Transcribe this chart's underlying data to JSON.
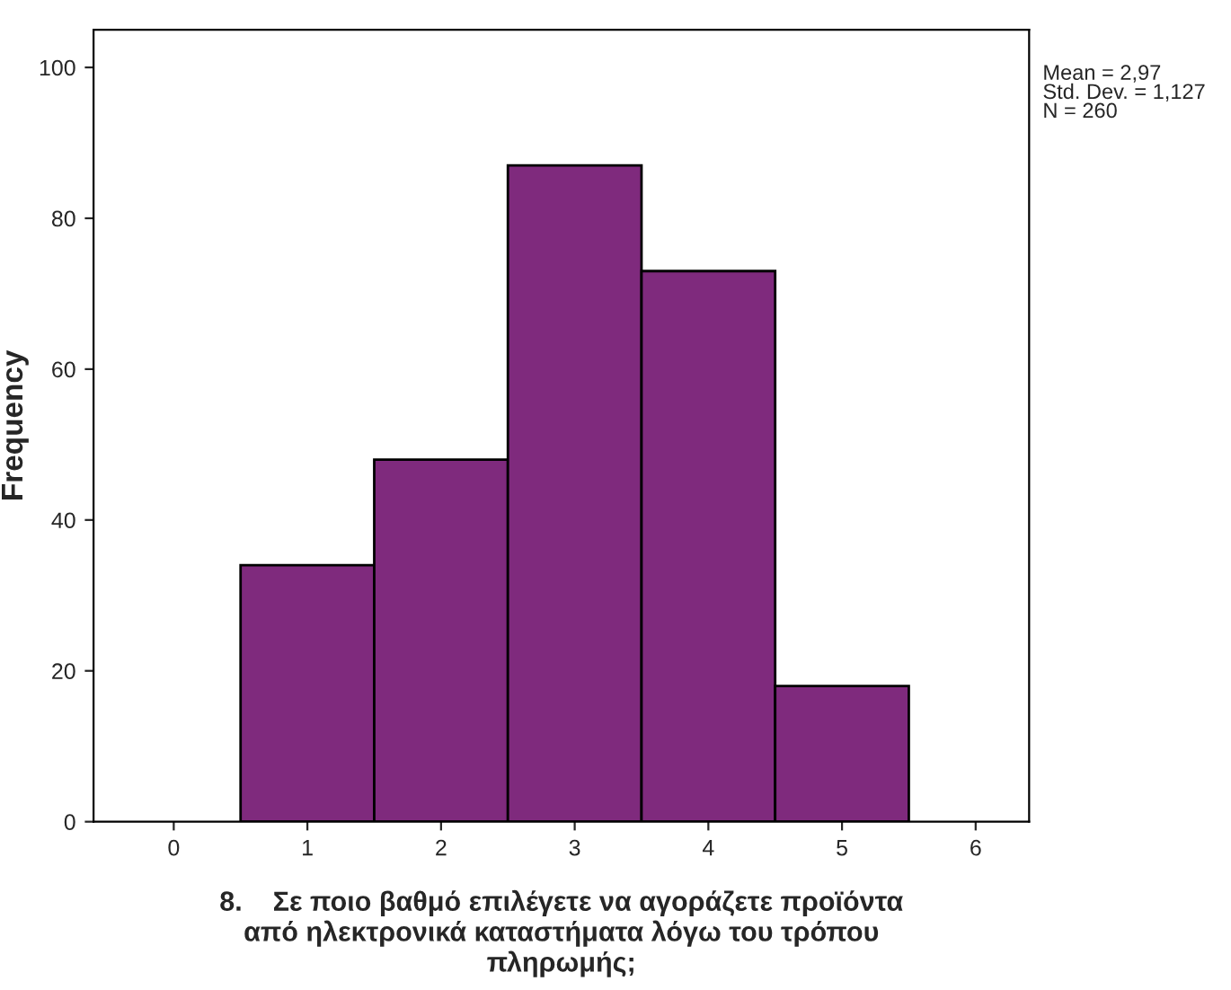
{
  "chart_data": {
    "type": "histogram",
    "bins": [
      0.5,
      1.5,
      2.5,
      3.5,
      4.5,
      5.5
    ],
    "values": [
      34,
      48,
      87,
      73,
      18
    ],
    "color": "#7f2a7d",
    "xlabel": "8.    Σε ποιο βαθμό επιλέγετε να αγοράζετε προϊόντα\nαπό ηλεκτρονικά καταστήματα λόγω του τρόπου\nπληρωμής;",
    "ylabel": "Frequency",
    "xlim": [
      -0.6,
      6.4
    ],
    "xticks": [
      0,
      1,
      2,
      3,
      4,
      5,
      6
    ],
    "ylim": [
      0,
      105
    ],
    "yticks": [
      0,
      20,
      40,
      60,
      80,
      100
    ],
    "grid": false,
    "annotations": [
      "Mean = 2,97\nStd. Dev. = 1,127\nN = 260"
    ]
  }
}
